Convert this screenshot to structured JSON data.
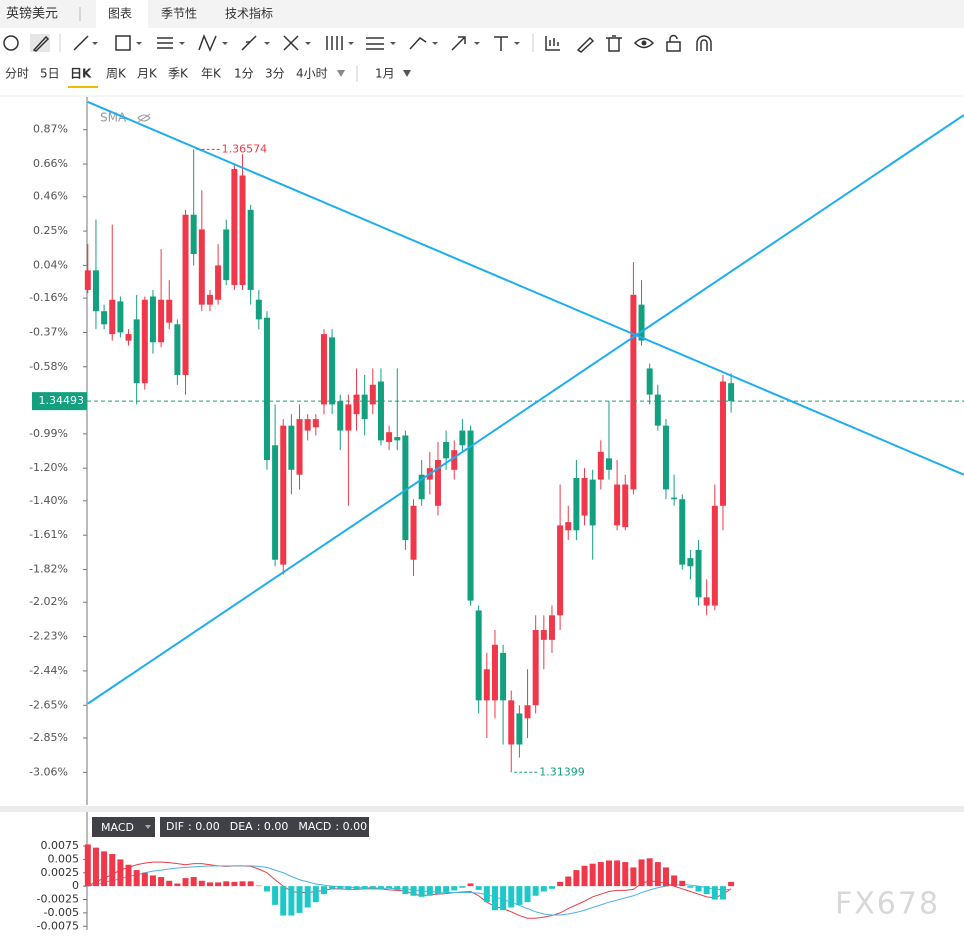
{
  "header": {
    "symbol": "英镑美元",
    "tabs": [
      "图表",
      "季节性",
      "技术指标"
    ]
  },
  "timeframes": [
    "分时",
    "5日",
    "日K",
    "周K",
    "月K",
    "季K",
    "年K",
    "1分",
    "3分",
    "4小时"
  ],
  "period": "1月",
  "watermark": "FX678",
  "chart_data": [
    {
      "type": "candlestick",
      "indicator": "SMA",
      "ylim": [
        -3.26,
        1.07
      ],
      "xlim": [
        -0.1,
        107.6
      ],
      "yticks": [
        {
          "value": 0.87,
          "label": "0.87%"
        },
        {
          "value": 0.66,
          "label": "0.66%"
        },
        {
          "value": 0.46,
          "label": "0.46%"
        },
        {
          "value": 0.25,
          "label": "0.25%"
        },
        {
          "value": 0.04,
          "label": "0.04%"
        },
        {
          "value": -0.16,
          "label": "-0.16%"
        },
        {
          "value": -0.37,
          "label": "-0.37%"
        },
        {
          "value": -0.58,
          "label": "-0.58%"
        },
        {
          "value": -0.99,
          "label": "-0.99%"
        },
        {
          "value": -1.2,
          "label": "-1.20%"
        },
        {
          "value": -1.4,
          "label": "-1.40%"
        },
        {
          "value": -1.61,
          "label": "-1.61%"
        },
        {
          "value": -1.82,
          "label": "-1.82%"
        },
        {
          "value": -2.02,
          "label": "-2.02%"
        },
        {
          "value": -2.23,
          "label": "-2.23%"
        },
        {
          "value": -2.44,
          "label": "-2.44%"
        },
        {
          "value": -2.65,
          "label": "-2.65%"
        },
        {
          "value": -2.85,
          "label": "-2.85%"
        },
        {
          "value": -3.06,
          "label": "-3.06%"
        }
      ],
      "up_color": "#f0384a",
      "down_color": "#13a07e",
      "open": [
        -0.11,
        0.01,
        -0.24,
        -0.38,
        -0.18,
        -0.42,
        -0.29,
        -0.68,
        -0.15,
        -0.43,
        -0.31,
        -0.32,
        -0.63,
        0.35,
        -0.2,
        -0.2,
        -0.17,
        0.26,
        -0.08,
        -0.08,
        0.38,
        -0.17,
        -0.28,
        -1.06,
        -1.79,
        -0.94,
        -1.24,
        -0.97,
        -0.95,
        -0.81,
        -0.4,
        -0.79,
        -0.97,
        -0.87,
        -0.75,
        -0.81,
        -0.67,
        -1.04,
        -1.01,
        -1.0,
        -1.76,
        -1.24,
        -1.27,
        -1.43,
        -1.04,
        -1.21,
        -0.97,
        -0.97,
        -2.07,
        -2.62,
        -2.62,
        -2.33,
        -2.89,
        -2.7,
        -2.73,
        -2.65,
        -2.25,
        -2.25,
        -2.1,
        -1.58,
        -1.26,
        -1.49,
        -1.27,
        -1.27,
        -1.14,
        -1.55,
        -1.56,
        -1.33,
        -0.2,
        -0.59,
        -0.75,
        -0.94,
        -1.38,
        -1.39,
        -1.75,
        -1.7,
        -2.04,
        -2.04,
        -1.43,
        -0.68
      ],
      "high": [
        0.17,
        0.32,
        -0.2,
        0.29,
        -0.15,
        -0.35,
        -0.14,
        -0.15,
        -0.11,
        0.14,
        -0.05,
        -0.29,
        0.38,
        0.75,
        0.5,
        -0.11,
        0.17,
        0.32,
        0.66,
        0.72,
        0.41,
        -0.11,
        -0.24,
        -0.81,
        -0.9,
        -0.87,
        -0.81,
        -0.87,
        -0.87,
        -0.35,
        -0.35,
        -0.75,
        -0.75,
        -0.59,
        -0.63,
        -0.59,
        -0.59,
        -0.94,
        -0.59,
        -0.97,
        -1.39,
        -1.15,
        -1.1,
        -1.04,
        -0.97,
        -1.03,
        -0.9,
        -0.94,
        -2.04,
        -2.33,
        -2.19,
        -2.28,
        -2.56,
        -2.65,
        -2.43,
        -2.1,
        -2.1,
        -2.04,
        -1.3,
        -1.43,
        -1.15,
        -1.2,
        -1.21,
        -1.03,
        -0.79,
        -1.15,
        -1.24,
        0.06,
        -0.05,
        -0.56,
        -0.69,
        -0.9,
        -1.24,
        -1.36,
        -1.7,
        -1.64,
        -1.88,
        -1.3,
        -0.63,
        -0.62
      ],
      "low": [
        -0.13,
        -0.35,
        -0.35,
        -0.42,
        -0.4,
        -0.45,
        -0.81,
        -0.72,
        -0.5,
        -0.46,
        -0.35,
        -0.69,
        -0.75,
        0.04,
        -0.24,
        -0.24,
        -0.2,
        -0.08,
        -0.11,
        -0.11,
        -0.2,
        -0.35,
        -1.21,
        -1.8,
        -1.85,
        -1.36,
        -1.33,
        -1.03,
        -1.0,
        -0.87,
        -0.87,
        -1.09,
        -1.43,
        -0.97,
        -1.0,
        -0.87,
        -1.06,
        -1.09,
        -1.09,
        -1.7,
        -1.86,
        -1.43,
        -1.36,
        -1.49,
        -1.21,
        -1.27,
        -1.1,
        -2.04,
        -2.7,
        -2.85,
        -2.73,
        -2.89,
        -3.06,
        -2.97,
        -2.85,
        -2.7,
        -2.43,
        -2.33,
        -2.19,
        -1.64,
        -1.64,
        -1.55,
        -1.76,
        -1.33,
        -1.27,
        -1.58,
        -1.58,
        -1.36,
        -0.45,
        -0.81,
        -0.97,
        -1.39,
        -1.43,
        -1.82,
        -1.88,
        -2.04,
        -2.1,
        -2.07,
        -1.58,
        -0.86
      ],
      "close": [
        0.01,
        -0.24,
        -0.32,
        -0.17,
        -0.37,
        -0.38,
        -0.68,
        -0.17,
        -0.43,
        -0.17,
        -0.17,
        -0.63,
        0.35,
        0.11,
        0.26,
        -0.14,
        0.04,
        -0.05,
        0.63,
        0.59,
        -0.11,
        -0.29,
        -1.15,
        -1.76,
        -0.94,
        -1.21,
        -0.9,
        -0.9,
        -0.9,
        -0.38,
        -0.81,
        -0.97,
        -0.81,
        -0.75,
        -0.9,
        -0.69,
        -1.03,
        -0.98,
        -1.03,
        -1.64,
        -1.43,
        -1.39,
        -1.2,
        -1.15,
        -1.14,
        -1.09,
        -1.06,
        -2.01,
        -2.62,
        -2.43,
        -2.28,
        -2.62,
        -2.62,
        -2.89,
        -2.65,
        -2.19,
        -2.19,
        -2.1,
        -1.55,
        -1.53,
        -1.58,
        -1.26,
        -1.55,
        -1.1,
        -1.21,
        -1.3,
        -1.3,
        -0.14,
        -0.42,
        -0.75,
        -0.94,
        -1.33,
        -1.39,
        -1.79,
        -1.8,
        -1.99,
        -1.99,
        -1.43,
        -0.67,
        -0.79
      ],
      "high_label": "1.36574",
      "low_label": "1.31399",
      "last_price_label": "1.34493",
      "trend_lines": [
        {
          "color": "#1eaef0",
          "points": [
            [
              0,
              1.04
            ],
            [
              107.6,
              -1.24
            ]
          ]
        },
        {
          "color": "#1eaef0",
          "points": [
            [
              0,
              -2.64
            ],
            [
              107.6,
              0.96
            ]
          ]
        }
      ]
    },
    {
      "type": "macd",
      "name": "MACD",
      "ylim": [
        -0.0082,
        0.009
      ],
      "xlim": [
        -0.1,
        107.6
      ],
      "yticks": [
        0.0075,
        0.005,
        0.0025,
        0,
        -0.0025,
        -0.005,
        -0.0075
      ],
      "series": [
        {
          "name": "DIF",
          "readout": ": 0.00",
          "color": "#e8404a",
          "values": [
            0.0,
            0.0008,
            0.0015,
            0.0022,
            0.003,
            0.0035,
            0.004,
            0.0043,
            0.0045,
            0.0045,
            0.0044,
            0.0042,
            0.004,
            0.0042,
            0.0042,
            0.004,
            0.0038,
            0.0037,
            0.0038,
            0.0038,
            0.0037,
            0.0032,
            0.0025,
            0.0012,
            0.0,
            -0.001,
            -0.0012,
            -0.0012,
            -0.001,
            -0.0008,
            -0.0005,
            -0.0005,
            -0.0006,
            -0.0006,
            -0.0005,
            -0.0005,
            -0.0005,
            -0.0007,
            -0.0008,
            -0.0009,
            -0.0015,
            -0.0018,
            -0.0016,
            -0.0015,
            -0.0014,
            -0.0012,
            -0.0011,
            -0.001,
            -0.0018,
            -0.003,
            -0.0038,
            -0.0042,
            -0.0048,
            -0.0055,
            -0.006,
            -0.006,
            -0.0058,
            -0.0055,
            -0.005,
            -0.0042,
            -0.0035,
            -0.0028,
            -0.002,
            -0.0015,
            -0.001,
            -0.0008,
            -0.0008,
            -0.0006,
            0.0005,
            0.001,
            0.0008,
            0.0005,
            0.0,
            -0.0005,
            -0.001,
            -0.0015,
            -0.002,
            -0.0022,
            -0.0015,
            -0.0005
          ]
        },
        {
          "name": "DEA",
          "readout": ": 0.00",
          "color": "#4fb0e8",
          "values": [
            0.0,
            0.0003,
            0.0007,
            0.001,
            0.0014,
            0.0018,
            0.0021,
            0.0025,
            0.0028,
            0.003,
            0.0032,
            0.0034,
            0.0035,
            0.0036,
            0.0037,
            0.0038,
            0.0038,
            0.0038,
            0.0038,
            0.0038,
            0.0038,
            0.0037,
            0.0035,
            0.003,
            0.0025,
            0.0018,
            0.0012,
            0.0008,
            0.0004,
            0.0002,
            0.0,
            -0.0001,
            -0.0002,
            -0.0003,
            -0.0003,
            -0.0003,
            -0.0004,
            -0.0004,
            -0.0005,
            -0.0005,
            -0.0007,
            -0.0009,
            -0.001,
            -0.0011,
            -0.0012,
            -0.0012,
            -0.0012,
            -0.0012,
            -0.0013,
            -0.0016,
            -0.002,
            -0.0025,
            -0.003,
            -0.0036,
            -0.0042,
            -0.0048,
            -0.0052,
            -0.0054,
            -0.0054,
            -0.0052,
            -0.0049,
            -0.0045,
            -0.004,
            -0.0035,
            -0.003,
            -0.0026,
            -0.0022,
            -0.0018,
            -0.0012,
            -0.0007,
            -0.0003,
            0.0,
            0.0002,
            0.0003,
            0.0002,
            0.0,
            -0.0003,
            -0.0006,
            -0.0007,
            -0.0006
          ]
        },
        {
          "name": "MACD",
          "readout": ": 0.00",
          "type": "bar",
          "up_color": "#f0384a",
          "down_color": "#1ec8c8",
          "values": [
            0.0078,
            0.0072,
            0.0065,
            0.006,
            0.005,
            0.004,
            0.003,
            0.0025,
            0.002,
            0.0017,
            0.001,
            0.0005,
            0.0015,
            0.0017,
            0.001,
            0.0007,
            0.0007,
            0.0009,
            0.0008,
            0.0009,
            0.0009,
            0.0001,
            -0.001,
            -0.0035,
            -0.0055,
            -0.0055,
            -0.005,
            -0.004,
            -0.003,
            -0.0015,
            -0.0005,
            -0.0005,
            -0.0007,
            -0.0007,
            -0.0006,
            -0.0005,
            -0.0006,
            -0.0004,
            -0.0007,
            -0.0015,
            -0.0018,
            -0.002,
            -0.0018,
            -0.0015,
            -0.0012,
            -0.0008,
            -0.0003,
            0.0005,
            -0.0007,
            -0.003,
            -0.0045,
            -0.0045,
            -0.004,
            -0.0035,
            -0.003,
            -0.0018,
            -0.001,
            -0.0005,
            0.0008,
            0.0018,
            0.003,
            0.0038,
            0.0042,
            0.0045,
            0.0048,
            0.0048,
            0.0045,
            0.0035,
            0.005,
            0.0052,
            0.0045,
            0.0035,
            0.002,
            0.001,
            -0.0003,
            -0.001,
            -0.0015,
            -0.0025,
            -0.0025,
            0.0008
          ]
        }
      ]
    }
  ]
}
